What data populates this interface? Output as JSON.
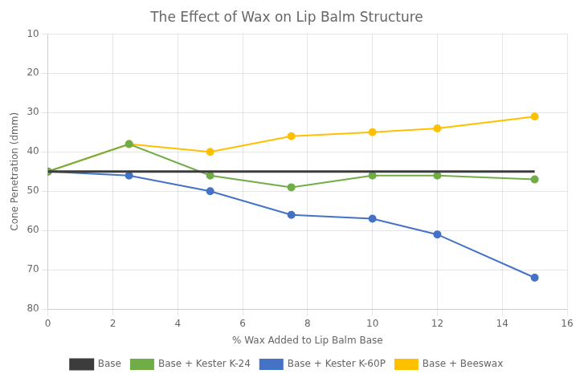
{
  "chart_data": {
    "type": "line",
    "title": "The Effect of Wax on Lip Balm Structure",
    "x_label": "% Wax Added to Lip Balm Base",
    "y_label": "Cone Penetration (dmm)",
    "xlim": [
      0,
      16
    ],
    "ylim": [
      80,
      10
    ],
    "xticks": [
      0,
      2,
      4,
      6,
      8,
      10,
      12,
      14,
      16
    ],
    "yticks": [
      10,
      20,
      30,
      40,
      50,
      60,
      70,
      80
    ],
    "grid": true,
    "legend": "bottom",
    "series": [
      {
        "name": "Base",
        "color": "#3c3c3c",
        "marker": "none",
        "x": [
          0,
          15
        ],
        "values": [
          45,
          45
        ]
      },
      {
        "name": "Base + Kester K-24",
        "color": "#70ad47",
        "marker": "o",
        "x": [
          0,
          2.5,
          5,
          7.5,
          10,
          12,
          15
        ],
        "values": [
          45,
          38,
          46,
          49,
          46,
          46,
          47
        ]
      },
      {
        "name": "Base + Kester K-60P",
        "color": "#4472c4",
        "marker": "o",
        "x": [
          0,
          2.5,
          5,
          7.5,
          10,
          12,
          15
        ],
        "values": [
          45,
          46,
          50,
          56,
          57,
          61,
          72
        ]
      },
      {
        "name": "Base + Beeswax",
        "color": "#ffc000",
        "marker": "o",
        "x": [
          0,
          2.5,
          5,
          7.5,
          10,
          12,
          15
        ],
        "values": [
          45,
          38,
          40,
          36,
          35,
          34,
          31
        ]
      }
    ]
  }
}
